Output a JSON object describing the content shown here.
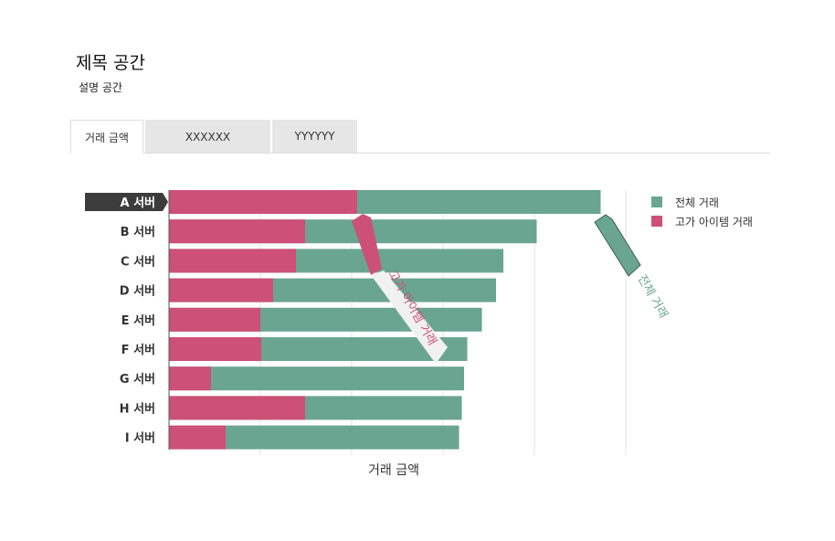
{
  "header": {
    "title": "제목 공간",
    "subtitle": "설명 공간"
  },
  "tabs": [
    {
      "label": "거래 금액",
      "active": true
    },
    {
      "label": "XXXXXX",
      "active": false
    },
    {
      "label": "YYYYYY",
      "active": false
    }
  ],
  "colors": {
    "total": "#6aa592",
    "premium": "#cd5079",
    "selected_label_bg": "#3c3c3c",
    "grid": "#e3e3e3"
  },
  "chart_data": {
    "type": "bar",
    "orientation": "horizontal",
    "categories": [
      "A 서버",
      "B 서버",
      "C 서버",
      "D 서버",
      "E 서버",
      "F 서버",
      "G 서버",
      "H 서버",
      "I 서버"
    ],
    "selected_category": "A 서버",
    "series": [
      {
        "name": "전체 거래",
        "values": [
          94.5,
          80.5,
          73.2,
          71.6,
          68.5,
          65.3,
          64.6,
          64.1,
          63.5
        ]
      },
      {
        "name": "고가 아이템 거래",
        "values": [
          41.2,
          29.8,
          27.8,
          22.8,
          20.0,
          20.2,
          9.2,
          29.8,
          12.4
        ]
      }
    ],
    "xlabel": "거래 금액",
    "ylabel": "",
    "xlim": [
      0,
      100
    ],
    "grid": true,
    "legend_position": "top-right",
    "annotations": [
      {
        "text": "고가 아이템 거래",
        "series": "고가 아이템 거래"
      },
      {
        "text": "전체 거래",
        "series": "전체 거래"
      }
    ]
  }
}
